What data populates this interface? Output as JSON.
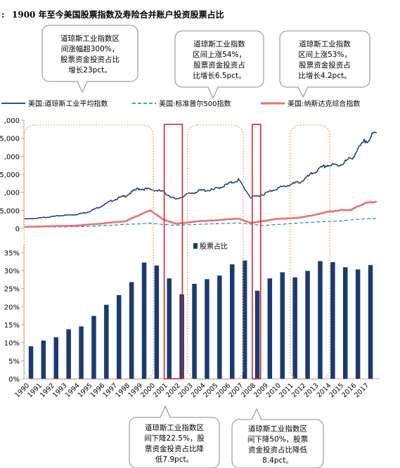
{
  "header": {
    "prefix": ":",
    "title": "1900 年至今美国股票指数及寿险合并账户投资股票占比"
  },
  "colors": {
    "dow": "#1a3a73",
    "sp500": "#2b8fd0",
    "nasdaq": "#e8726e",
    "bar": "#1a3a73",
    "period_box": "#e8a26a",
    "crash_box": "#d42a2a",
    "callout_border": "#8a8a8a"
  },
  "callouts": [
    {
      "lines": [
        "道琼斯工业指数区",
        "间涨幅超300%，",
        "股票资金投资占比",
        "增长23pct。"
      ]
    },
    {
      "lines": [
        "道琼斯工业指数",
        "区间上涨54%，",
        "股票资金投资占",
        "比增长6.5pct。"
      ]
    },
    {
      "lines": [
        "道琼斯工业指数",
        "区间上涨53%，",
        "股票资金投资占",
        "比增长4.2pct。"
      ]
    },
    {
      "lines": [
        "道琼斯工业指数区",
        "间下降22.5%，股",
        "票资金投资占比降",
        "低7.9pct。"
      ]
    },
    {
      "lines": [
        "道琼斯工业指数区",
        "间下降50%，股票",
        "资金投资占比降低",
        "8.4pct。"
      ]
    }
  ],
  "chart_data": [
    {
      "type": "line",
      "legend": [
        "美国:道琼斯工业平均指数",
        "美国:标准普尔500指数",
        "美国:纳斯达克综合指数"
      ],
      "legend_position": "top",
      "y_tick_labels": [
        ",000",
        "5,000",
        ",000",
        "5,000",
        ",000",
        "5,000",
        "0"
      ],
      "ylim": [
        0,
        30000
      ],
      "x_range": [
        1990,
        2018
      ],
      "series": [
        {
          "name": "美国:道琼斯工业平均指数",
          "style": "solid",
          "points": [
            [
              1990,
              2600
            ],
            [
              1991,
              2800
            ],
            [
              1992,
              3200
            ],
            [
              1993,
              3600
            ],
            [
              1994,
              3800
            ],
            [
              1995,
              4500
            ],
            [
              1996,
              6000
            ],
            [
              1997,
              7800
            ],
            [
              1998,
              9000
            ],
            [
              1999,
              11000
            ],
            [
              2000,
              10800
            ],
            [
              2001,
              10200
            ],
            [
              2002,
              8000
            ],
            [
              2003,
              9500
            ],
            [
              2004,
              10500
            ],
            [
              2005,
              10700
            ],
            [
              2006,
              12000
            ],
            [
              2007,
              13500
            ],
            [
              2008,
              8500
            ],
            [
              2009,
              9500
            ],
            [
              2010,
              11000
            ],
            [
              2011,
              12000
            ],
            [
              2012,
              13000
            ],
            [
              2013,
              15500
            ],
            [
              2014,
              17500
            ],
            [
              2015,
              17500
            ],
            [
              2016,
              19500
            ],
            [
              2017,
              24000
            ],
            [
              2018,
              26500
            ]
          ]
        },
        {
          "name": "美国:标准普尔500指数",
          "style": "dashed",
          "points": [
            [
              1990,
              330
            ],
            [
              1992,
              420
            ],
            [
              1994,
              460
            ],
            [
              1996,
              700
            ],
            [
              1998,
              1100
            ],
            [
              2000,
              1400
            ],
            [
              2002,
              850
            ],
            [
              2004,
              1150
            ],
            [
              2007,
              1500
            ],
            [
              2009,
              800
            ],
            [
              2011,
              1300
            ],
            [
              2013,
              1750
            ],
            [
              2015,
              2050
            ],
            [
              2017,
              2650
            ],
            [
              2018,
              2700
            ]
          ]
        },
        {
          "name": "美国:纳斯达克综合指数",
          "style": "solid",
          "points": [
            [
              1990,
              400
            ],
            [
              1992,
              600
            ],
            [
              1994,
              750
            ],
            [
              1996,
              1300
            ],
            [
              1998,
              2000
            ],
            [
              1999,
              3500
            ],
            [
              2000,
              5000
            ],
            [
              2001,
              2500
            ],
            [
              2002,
              1300
            ],
            [
              2004,
              2000
            ],
            [
              2007,
              2700
            ],
            [
              2008,
              1500
            ],
            [
              2010,
              2600
            ],
            [
              2012,
              3000
            ],
            [
              2014,
              4500
            ],
            [
              2015,
              5000
            ],
            [
              2016,
              5200
            ],
            [
              2017,
              6900
            ],
            [
              2018,
              7500
            ]
          ]
        }
      ]
    },
    {
      "type": "bar",
      "legend": [
        "股票占比"
      ],
      "legend_position": "top",
      "categories": [
        "1990",
        "1991",
        "1992",
        "1993",
        "1994",
        "1995",
        "1996",
        "1997",
        "1998",
        "1999",
        "2000",
        "2001",
        "2002",
        "2003",
        "2004",
        "2005",
        "2006",
        "2007",
        "2008",
        "2009",
        "2010",
        "2011",
        "2012",
        "2013",
        "2014",
        "2015",
        "2016",
        "2017"
      ],
      "series": [
        {
          "name": "股票占比",
          "values": [
            9.0,
            10.6,
            11.5,
            13.7,
            14.5,
            17.4,
            20.5,
            23.2,
            26.8,
            32.2,
            31.4,
            27.8,
            23.4,
            26.3,
            27.6,
            28.6,
            31.7,
            32.8,
            24.4,
            27.8,
            29.5,
            28.1,
            29.9,
            32.6,
            32.3,
            30.9,
            30.3,
            31.5
          ]
        }
      ],
      "y_tick_labels": [
        "0%",
        "5%",
        "10%",
        "15%",
        "20%",
        "25%",
        "30%",
        "35%"
      ],
      "ylim": [
        0,
        37
      ]
    }
  ]
}
